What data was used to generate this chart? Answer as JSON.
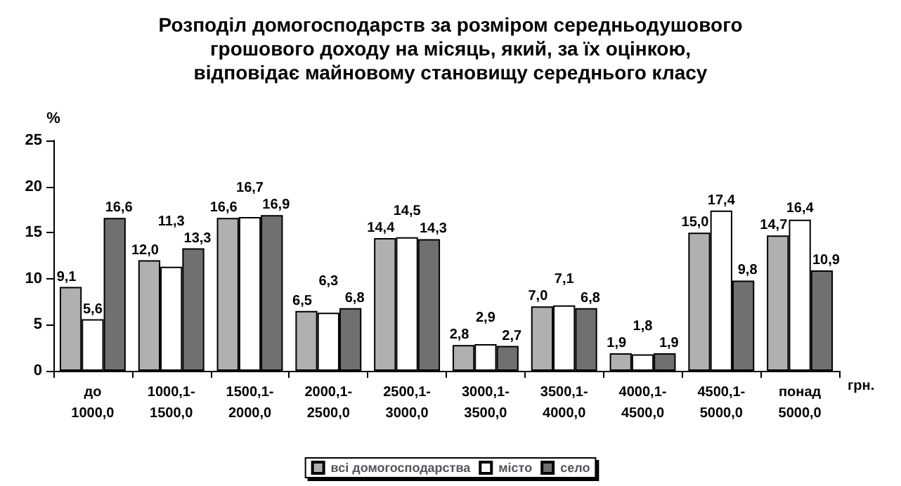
{
  "chart_data": {
    "type": "bar",
    "title": "Розподіл домогосподарств за розміром середньодушового\nгрошового доходу на місяць, який, за їх оцінкою,\nвідповідає майновому становищу середнього класу",
    "xlabel": "грн.",
    "ylabel": "%",
    "categories": [
      "до\n1000,0",
      "1000,1-\n1500,0",
      "1500,1-\n2000,0",
      "2000,1-\n2500,0",
      "2500,1-\n3000,0",
      "3000,1-\n3500,0",
      "3500,1-\n4000,0",
      "4000,1-\n4500,0",
      "4500,1-\n5000,0",
      "понад\n5000,0"
    ],
    "series": [
      {
        "name": "всі домогосподарства",
        "color": "#b0b0b0",
        "values": [
          9.1,
          12.0,
          16.6,
          6.5,
          14.4,
          2.8,
          7.0,
          1.9,
          15.0,
          14.7
        ],
        "value_labels": [
          "9,1",
          "12,0",
          "16,6",
          "6,5",
          "14,4",
          "2,8",
          "7,0",
          "1,9",
          "15,0",
          "14,7"
        ]
      },
      {
        "name": "місто",
        "color": "#ffffff",
        "values": [
          5.6,
          11.3,
          16.7,
          6.3,
          14.5,
          2.9,
          7.1,
          1.8,
          17.4,
          16.4
        ],
        "value_labels": [
          "5,6",
          "11,3",
          "16,7",
          "6,3",
          "14,5",
          "2,9",
          "7,1",
          "1,8",
          "17,4",
          "16,4"
        ]
      },
      {
        "name": "село",
        "color": "#707070",
        "values": [
          16.6,
          13.3,
          16.9,
          6.8,
          14.3,
          2.7,
          6.8,
          1.9,
          9.8,
          10.9
        ],
        "value_labels": [
          "16,6",
          "13,3",
          "16,9",
          "6,8",
          "14,3",
          "2,7",
          "6,8",
          "1,9",
          "9,8",
          "10,9"
        ]
      }
    ],
    "ylim": [
      0,
      25
    ],
    "yticks": [
      0,
      5,
      10,
      15,
      20,
      25
    ],
    "grid": false,
    "legend": "bottom"
  }
}
